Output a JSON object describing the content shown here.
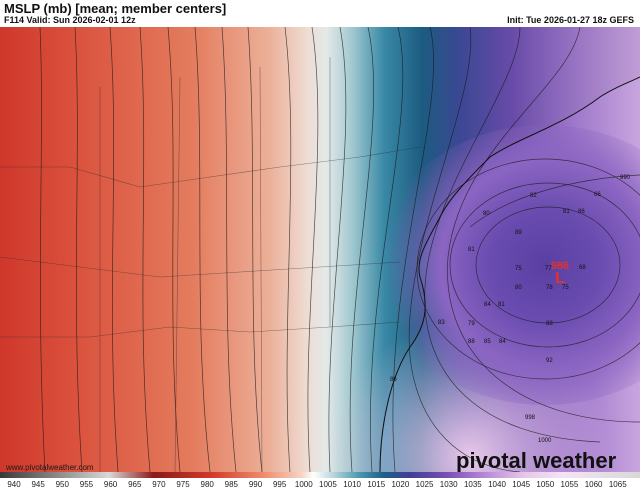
{
  "header": {
    "title": "MSLP (mb) [mean; member centers]",
    "valid": "F114 Valid: Sun 2026-02-01 12z",
    "init": "Init: Tue 2026-01-27 18z GEFS"
  },
  "watermark": {
    "url": "www.pivotalweather.com",
    "brand": "pivotal weather"
  },
  "low_center": {
    "pressure": "986",
    "letter": "L",
    "color": "#e4312b"
  },
  "member_centers": [
    "82",
    "66",
    "81",
    "86",
    "80",
    "89",
    "81",
    "75",
    "77",
    "68",
    "80",
    "78",
    "75",
    "84",
    "81",
    "79",
    "88",
    "88",
    "85",
    "84",
    "83",
    "92",
    "86"
  ],
  "contour_labels": [
    "990",
    "998",
    "1000"
  ],
  "colorbar": {
    "labels": [
      "940",
      "945",
      "950",
      "955",
      "960",
      "965",
      "970",
      "975",
      "980",
      "985",
      "990",
      "995",
      "1000",
      "1005",
      "1010",
      "1015",
      "1020",
      "1025",
      "1030",
      "1035",
      "1040",
      "1045",
      "1050",
      "1055",
      "1060",
      "1065"
    ]
  },
  "colors": {
    "warm": "#e9634a",
    "neutral": "#f4f2ef",
    "cool": "#1f6e8f",
    "deep_low": "#5a3fa3"
  }
}
